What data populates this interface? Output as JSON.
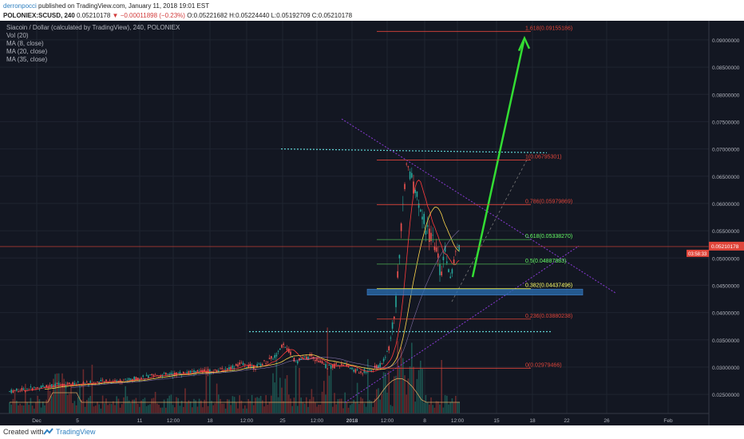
{
  "header": {
    "author": "derronpocci",
    "published": "published on TradingView.com, January 11, 2018 19:01 EST",
    "symbol": "POLONIEX:SCUSD, 240",
    "price": "0.05210178",
    "change": "−0.00011898 (−0.23%)",
    "ohlc": "O:0.05221682 H:0.05224440 L:0.05192709 C:0.05210178"
  },
  "legend": {
    "title": "Siacoin / Dollar (calculated by TradingView), 240, POLONIEX",
    "items": [
      "Vol (20)",
      "MA (8, close)",
      "MA (20, close)",
      "MA (35, close)"
    ]
  },
  "footer": {
    "created_with": "Created with",
    "brand": "TradingView"
  },
  "colors": {
    "bg": "#131722",
    "up": "#26a69a",
    "down": "#ef5350",
    "fib_red": "#e0453a",
    "fib_green": "#4caf50",
    "arrow": "#33dd33",
    "dotted_cyan": "#5fd3d3",
    "dotted_purple": "#8a3ad6",
    "current_price": "#e0453a"
  },
  "chart_data": {
    "type": "candlestick",
    "symbol": "POLONIEX:SCUSD",
    "interval": "240",
    "ylim": [
      0.0215,
      0.0935
    ],
    "y_ticks": [
      "0.09000000",
      "0.08500000",
      "0.08000000",
      "0.07500000",
      "0.07000000",
      "0.06500000",
      "0.06000000",
      "0.05500000",
      "0.05000000",
      "0.04500000",
      "0.04000000",
      "0.03500000",
      "0.03000000",
      "0.02500000"
    ],
    "x_ticks": [
      "Dec",
      "5",
      "11",
      "12:00",
      "18",
      "12:00",
      "25",
      "12:00",
      "2018",
      "12:00",
      "8",
      "12:00",
      "15",
      "18",
      "22",
      "26",
      "Feb"
    ],
    "current_price": {
      "value": 0.05210178,
      "label": "0.05210178",
      "countdown": "03:58:33"
    },
    "fibonacci": [
      {
        "level": "1.618",
        "value": 0.09155186,
        "label": "1.618(0.09155186)"
      },
      {
        "level": "1",
        "value": 0.06795301,
        "label": "1(0.06795301)"
      },
      {
        "level": "0.786",
        "value": 0.05979869,
        "label": "0.786(0.05979869)"
      },
      {
        "level": "0.618",
        "value": 0.0533827,
        "label": "0.618(0.05338270)"
      },
      {
        "level": "0.5",
        "value": 0.04887883,
        "label": "0.5(0.04887883)"
      },
      {
        "level": "0.382",
        "value": 0.04437496,
        "label": "0.382(0.04437496)"
      },
      {
        "level": "0.236",
        "value": 0.03880238,
        "label": "0.236(0.03880238)"
      },
      {
        "level": "0",
        "value": 0.02979466,
        "label": "0(0.02979466)"
      }
    ],
    "annotations": {
      "support_zone": [
        0.0432,
        0.0443
      ],
      "resistance_dotted": 0.07,
      "support_dotted": 0.0365
    },
    "indicators": [
      "Vol (20)",
      "MA (8, close)",
      "MA (20, close)",
      "MA (35, close)"
    ]
  }
}
